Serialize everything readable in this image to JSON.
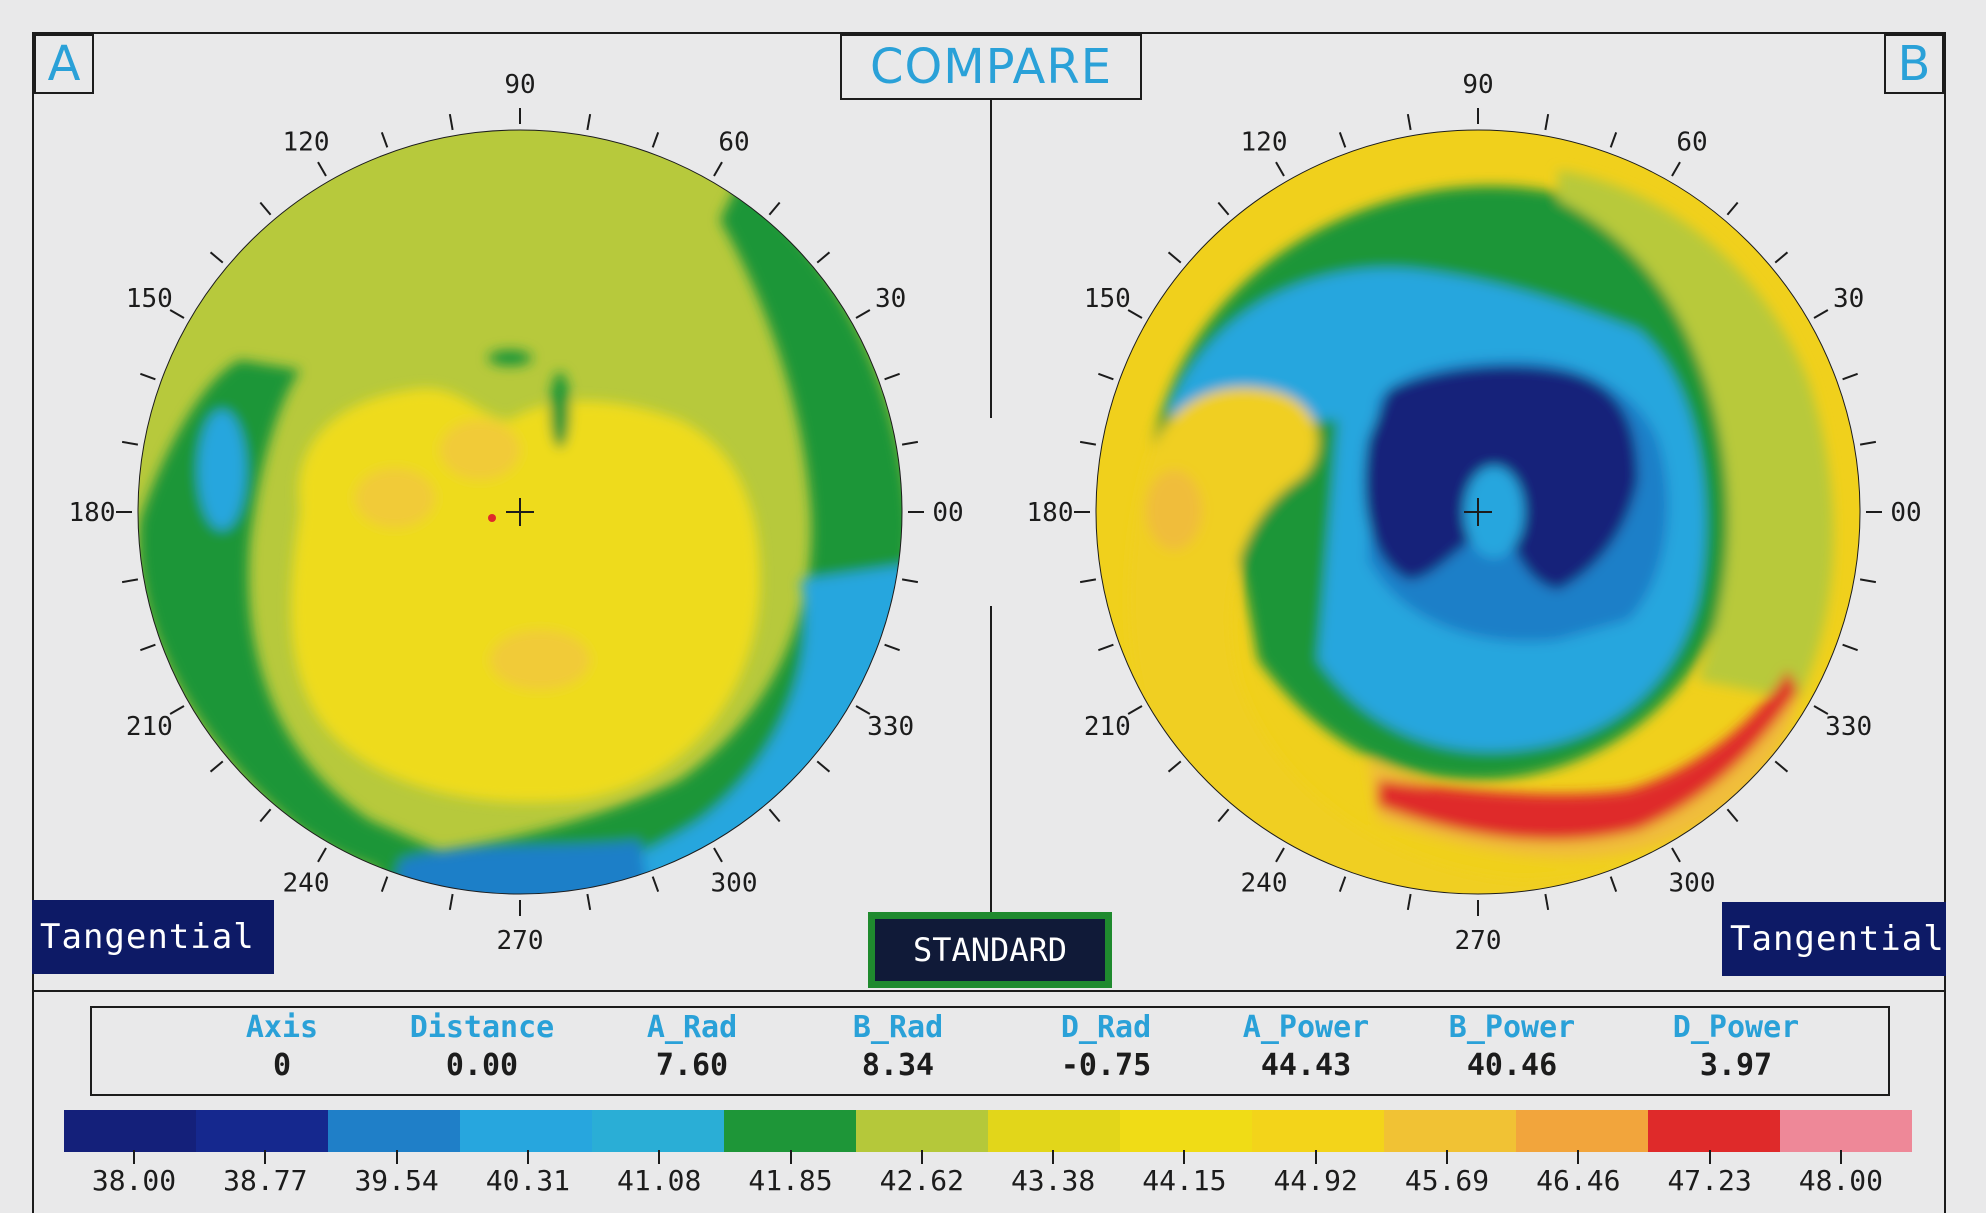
{
  "header": {
    "title": "COMPARE"
  },
  "map_a": {
    "label": "A",
    "mode": "Tangential",
    "axis_labels": [
      "90",
      "60",
      "30",
      "00",
      "330",
      "300",
      "270",
      "240",
      "210",
      "180",
      "150",
      "120"
    ]
  },
  "map_b": {
    "label": "B",
    "mode": "Tangential",
    "axis_labels": [
      "90",
      "60",
      "30",
      "00",
      "330",
      "300",
      "270",
      "240",
      "210",
      "180",
      "150",
      "120"
    ]
  },
  "scale_button": {
    "label": "STANDARD"
  },
  "stats": {
    "columns": [
      {
        "label": "Axis",
        "value": "0"
      },
      {
        "label": "Distance",
        "value": "0.00"
      },
      {
        "label": "A_Rad",
        "value": "7.60"
      },
      {
        "label": "B_Rad",
        "value": "8.34"
      },
      {
        "label": "D_Rad",
        "value": "-0.75"
      },
      {
        "label": "A_Power",
        "value": "44.43"
      },
      {
        "label": "B_Power",
        "value": "40.46"
      },
      {
        "label": "D_Power",
        "value": "3.97"
      }
    ]
  },
  "color_scale": {
    "labels": [
      "38.00",
      "38.77",
      "39.54",
      "40.31",
      "41.08",
      "41.85",
      "42.62",
      "43.38",
      "44.15",
      "44.92",
      "45.69",
      "46.46",
      "47.23",
      "48.00"
    ],
    "colors": [
      "#14207a",
      "#15288e",
      "#1f7fc8",
      "#27a6de",
      "#2aaed6",
      "#1e9638",
      "#b5c83a",
      "#e2d61a",
      "#f0dc16",
      "#f3d41a",
      "#f1c234",
      "#f2a53c",
      "#df2a2a",
      "#ee8898"
    ]
  },
  "colors": {
    "accent": "#2aa1d8",
    "mode_box": "#0d1a66",
    "standard_border": "#1f8a2e"
  }
}
